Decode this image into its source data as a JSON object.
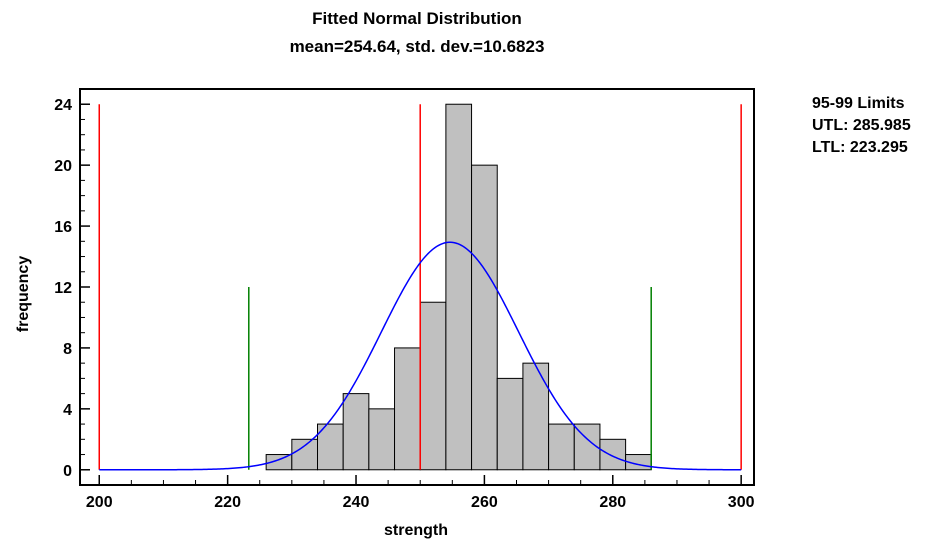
{
  "chart_data": {
    "type": "bar",
    "title": "Fitted Normal Distribution",
    "subtitle": "mean=254.64, std. dev.=10.6823",
    "xlabel": "strength",
    "ylabel": "frequency",
    "xlim": [
      197,
      302
    ],
    "ylim": [
      -1,
      25
    ],
    "x_ticks": [
      200,
      220,
      240,
      260,
      280,
      300
    ],
    "y_ticks": [
      0,
      4,
      8,
      12,
      16,
      20,
      24
    ],
    "bins": [
      {
        "start": 222,
        "end": 226,
        "value": 0
      },
      {
        "start": 226,
        "end": 230,
        "value": 1
      },
      {
        "start": 230,
        "end": 234,
        "value": 2
      },
      {
        "start": 234,
        "end": 238,
        "value": 3
      },
      {
        "start": 238,
        "end": 242,
        "value": 5
      },
      {
        "start": 242,
        "end": 246,
        "value": 4
      },
      {
        "start": 246,
        "end": 250,
        "value": 8
      },
      {
        "start": 250,
        "end": 254,
        "value": 11
      },
      {
        "start": 254,
        "end": 258,
        "value": 24
      },
      {
        "start": 258,
        "end": 262,
        "value": 20
      },
      {
        "start": 262,
        "end": 266,
        "value": 6
      },
      {
        "start": 266,
        "end": 270,
        "value": 7
      },
      {
        "start": 270,
        "end": 274,
        "value": 3
      },
      {
        "start": 274,
        "end": 278,
        "value": 3
      },
      {
        "start": 278,
        "end": 282,
        "value": 2
      },
      {
        "start": 282,
        "end": 286,
        "value": 1
      }
    ],
    "fitted_curve": {
      "mean": 254.64,
      "std_dev": 10.6823,
      "bin_width": 4,
      "n": 100,
      "color": "#0000ff"
    },
    "spec_lines": {
      "values": [
        200,
        250,
        300
      ],
      "color": "#ff0000",
      "height": 24
    },
    "limit_lines": {
      "values": [
        223.295,
        285.985
      ],
      "color": "#008000",
      "height": 12
    },
    "bar_fill": "#c0c0c0",
    "grid": false
  },
  "legend": {
    "heading": "95-99 Limits",
    "utl": "UTL: 285.985",
    "ltl": "LTL: 223.295"
  }
}
